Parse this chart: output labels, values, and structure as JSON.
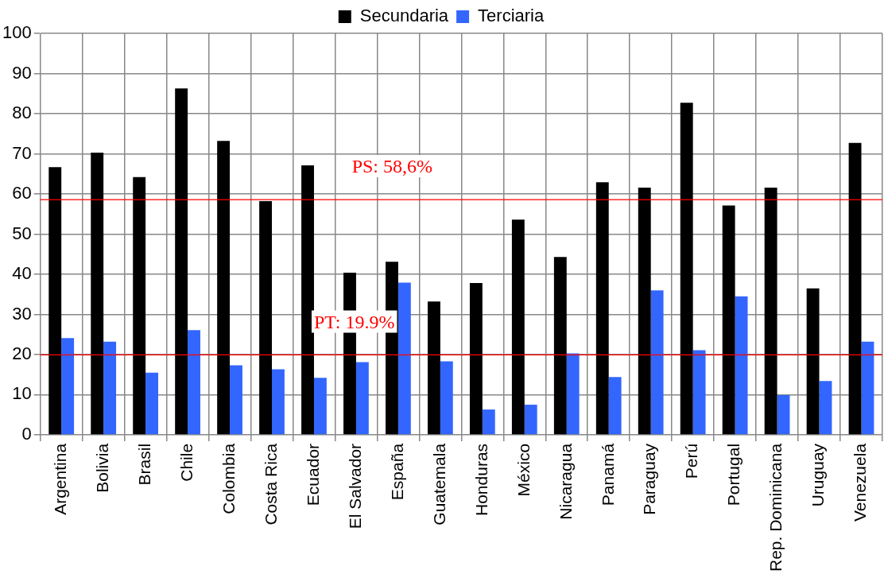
{
  "chart_data": {
    "type": "bar",
    "categories": [
      "Argentina",
      "Bolivia",
      "Brasil",
      "Chile",
      "Colombia",
      "Costa Rica",
      "Ecuador",
      "El Salvador",
      "España",
      "Guatemala",
      "Honduras",
      "México",
      "Nicaragua",
      "Panamá",
      "Paraguay",
      "Perú",
      "Portugal",
      "Rep. Dominicana",
      "Uruguay",
      "Venezuela"
    ],
    "series": [
      {
        "name": "Secundaria",
        "color": "#000000",
        "values": [
          66.7,
          70.3,
          64.2,
          86.3,
          73.2,
          58.2,
          67.1,
          40.4,
          43.1,
          33.2,
          37.8,
          53.6,
          44.3,
          62.9,
          61.6,
          82.7,
          57.1,
          61.6,
          36.5,
          72.7
        ]
      },
      {
        "name": "Terciaria",
        "color": "#3366ff",
        "values": [
          24.1,
          23.2,
          15.5,
          26.1,
          17.3,
          16.3,
          14.2,
          18.1,
          37.9,
          18.3,
          6.3,
          7.5,
          20.3,
          14.4,
          36.0,
          21.1,
          34.5,
          9.9,
          13.4,
          23.2
        ]
      }
    ],
    "ylim": [
      0,
      100
    ],
    "yticks": [
      0,
      10,
      20,
      30,
      40,
      50,
      60,
      70,
      80,
      90,
      100
    ],
    "grid": true,
    "legend": "top",
    "ref_lines": [
      {
        "axis": "y",
        "value": 58.6,
        "label": "PS: 58,6%",
        "color": "#ff0000"
      },
      {
        "axis": "y",
        "value": 19.9,
        "label": "PT: 19.9%",
        "color": "#ff0000"
      }
    ]
  }
}
